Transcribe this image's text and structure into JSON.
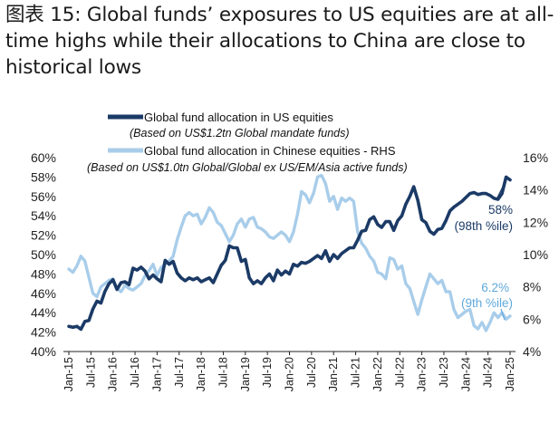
{
  "title": "图表 15: Global funds’  exposures to US equities are at all-time highs while their allocations to China are close to historical lows",
  "chart_data": {
    "type": "line",
    "x_ticks": [
      "Jan-15",
      "Jul-15",
      "Jan-16",
      "Jul-16",
      "Jan-17",
      "Jul-17",
      "Jan-18",
      "Jul-18",
      "Jan-19",
      "Jul-19",
      "Jan-20",
      "Jul-20",
      "Jan-21",
      "Jul-21",
      "Jan-22",
      "Jul-22",
      "Jan-23",
      "Jul-23",
      "Jan-24",
      "Jul-24",
      "Jan-25"
    ],
    "y_left": {
      "ticks": [
        "60%",
        "58%",
        "56%",
        "54%",
        "52%",
        "50%",
        "48%",
        "46%",
        "44%",
        "42%",
        "40%"
      ],
      "range": [
        40,
        60
      ]
    },
    "y_right": {
      "ticks": [
        "16%",
        "14%",
        "12%",
        "10%",
        "8%",
        "6%",
        "4%"
      ],
      "range": [
        4,
        16
      ]
    },
    "legend": [
      {
        "label": "Global fund allocation in US equities",
        "sub": "(Based on US$1.2tn Global mandate funds)",
        "color": "#1b3a66"
      },
      {
        "label": "Global fund allocation in Chinese equities - RHS",
        "sub": "(Based on US$1.0tn Global/Global ex US/EM/Asia active funds)",
        "color": "#a8cdea"
      }
    ],
    "annotations": [
      {
        "line1": "58%",
        "line2": "(98th %ile)",
        "color": "#1b3a66"
      },
      {
        "line1": "6.2%",
        "line2": "(9th %ile)",
        "color": "#5fa8dc"
      }
    ],
    "series": [
      {
        "name": "Global fund allocation in US equities",
        "axis": "left",
        "color": "#1b3a66",
        "points": [
          [
            0,
            42.6
          ],
          [
            1,
            42.5
          ],
          [
            2,
            42.6
          ],
          [
            3,
            42.3
          ],
          [
            4,
            43.1
          ],
          [
            5,
            43.2
          ],
          [
            6,
            44.4
          ],
          [
            7,
            45.2
          ],
          [
            8,
            45.0
          ],
          [
            9,
            46.2
          ],
          [
            10,
            47.0
          ],
          [
            11,
            47.4
          ],
          [
            12,
            46.4
          ],
          [
            13,
            47.1
          ],
          [
            14,
            47.2
          ],
          [
            15,
            46.9
          ],
          [
            16,
            48.6
          ],
          [
            17,
            48.4
          ],
          [
            18,
            48.7
          ],
          [
            19,
            48.3
          ],
          [
            20,
            47.5
          ],
          [
            21,
            47.9
          ],
          [
            22,
            47.5
          ],
          [
            23,
            47.2
          ],
          [
            24,
            49.4
          ],
          [
            25,
            49.0
          ],
          [
            26,
            49.3
          ],
          [
            27,
            48.1
          ],
          [
            28,
            47.6
          ],
          [
            29,
            47.3
          ],
          [
            30,
            47.6
          ],
          [
            31,
            47.4
          ],
          [
            32,
            47.6
          ],
          [
            33,
            47.2
          ],
          [
            34,
            47.4
          ],
          [
            35,
            47.6
          ],
          [
            36,
            47.1
          ],
          [
            37,
            48.0
          ],
          [
            38,
            48.9
          ],
          [
            39,
            49.4
          ],
          [
            40,
            50.9
          ],
          [
            41,
            50.7
          ],
          [
            42,
            50.7
          ],
          [
            43,
            49.3
          ],
          [
            44,
            49.5
          ],
          [
            45,
            47.6
          ],
          [
            46,
            47.0
          ],
          [
            47,
            47.3
          ],
          [
            48,
            47.0
          ],
          [
            49,
            47.6
          ],
          [
            50,
            48.0
          ],
          [
            51,
            47.3
          ],
          [
            52,
            48.4
          ],
          [
            53,
            47.9
          ],
          [
            54,
            48.3
          ],
          [
            55,
            48.0
          ],
          [
            56,
            49.0
          ],
          [
            57,
            48.8
          ],
          [
            58,
            49.2
          ],
          [
            59,
            49.1
          ],
          [
            60,
            49.3
          ],
          [
            61,
            49.6
          ],
          [
            62,
            49.9
          ],
          [
            63,
            49.6
          ],
          [
            64,
            50.4
          ],
          [
            65,
            49.3
          ],
          [
            66,
            50.0
          ],
          [
            67,
            49.6
          ],
          [
            68,
            50.1
          ],
          [
            69,
            50.4
          ],
          [
            70,
            50.7
          ],
          [
            71,
            50.7
          ],
          [
            72,
            51.5
          ],
          [
            73,
            52.4
          ],
          [
            74,
            52.5
          ],
          [
            75,
            53.6
          ],
          [
            76,
            53.9
          ],
          [
            77,
            53.1
          ],
          [
            78,
            52.8
          ],
          [
            79,
            53.4
          ],
          [
            80,
            53.4
          ],
          [
            81,
            52.5
          ],
          [
            82,
            53.5
          ],
          [
            83,
            54.0
          ],
          [
            84,
            55.2
          ],
          [
            85,
            56.0
          ],
          [
            86,
            57.0
          ],
          [
            87,
            55.6
          ],
          [
            88,
            53.6
          ],
          [
            89,
            53.3
          ],
          [
            90,
            52.4
          ],
          [
            91,
            52.1
          ],
          [
            92,
            52.6
          ],
          [
            93,
            52.7
          ],
          [
            94,
            53.5
          ],
          [
            95,
            54.5
          ],
          [
            96,
            54.9
          ],
          [
            97,
            55.2
          ],
          [
            98,
            55.5
          ],
          [
            99,
            55.9
          ],
          [
            100,
            56.3
          ],
          [
            101,
            56.4
          ],
          [
            102,
            56.2
          ],
          [
            103,
            56.3
          ],
          [
            104,
            56.3
          ],
          [
            105,
            56.1
          ],
          [
            106,
            55.8
          ],
          [
            107,
            55.7
          ],
          [
            108,
            56.3
          ],
          [
            109,
            58.0
          ],
          [
            110,
            57.7
          ]
        ]
      },
      {
        "name": "Global fund allocation in Chinese equities - RHS",
        "axis": "right",
        "color": "#a8cdea",
        "points": [
          [
            0,
            9.1
          ],
          [
            1,
            8.9
          ],
          [
            2,
            9.3
          ],
          [
            3,
            9.9
          ],
          [
            4,
            9.6
          ],
          [
            5,
            8.6
          ],
          [
            6,
            7.6
          ],
          [
            7,
            7.4
          ],
          [
            8,
            8.0
          ],
          [
            9,
            8.2
          ],
          [
            10,
            8.4
          ],
          [
            11,
            8.5
          ],
          [
            12,
            7.9
          ],
          [
            13,
            7.7
          ],
          [
            14,
            8.1
          ],
          [
            15,
            7.9
          ],
          [
            16,
            7.8
          ],
          [
            17,
            8.0
          ],
          [
            18,
            8.2
          ],
          [
            19,
            8.7
          ],
          [
            20,
            9.0
          ],
          [
            21,
            9.4
          ],
          [
            22,
            8.7
          ],
          [
            23,
            9.2
          ],
          [
            24,
            9.4
          ],
          [
            25,
            9.6
          ],
          [
            26,
            9.9
          ],
          [
            27,
            10.9
          ],
          [
            28,
            11.7
          ],
          [
            29,
            12.4
          ],
          [
            30,
            12.6
          ],
          [
            31,
            12.4
          ],
          [
            32,
            12.5
          ],
          [
            33,
            11.9
          ],
          [
            34,
            12.3
          ],
          [
            35,
            12.9
          ],
          [
            36,
            12.6
          ],
          [
            37,
            12.0
          ],
          [
            38,
            11.8
          ],
          [
            39,
            11.3
          ],
          [
            40,
            10.8
          ],
          [
            41,
            11.2
          ],
          [
            42,
            11.9
          ],
          [
            43,
            12.2
          ],
          [
            44,
            11.7
          ],
          [
            45,
            12.2
          ],
          [
            46,
            12.3
          ],
          [
            47,
            11.7
          ],
          [
            48,
            11.6
          ],
          [
            49,
            11.4
          ],
          [
            50,
            11.1
          ],
          [
            51,
            11.0
          ],
          [
            52,
            11.2
          ],
          [
            53,
            11.4
          ],
          [
            54,
            11.2
          ],
          [
            55,
            10.8
          ],
          [
            56,
            11.4
          ],
          [
            57,
            12.5
          ],
          [
            58,
            13.9
          ],
          [
            59,
            13.7
          ],
          [
            60,
            13.2
          ],
          [
            61,
            13.8
          ],
          [
            62,
            14.8
          ],
          [
            63,
            14.9
          ],
          [
            64,
            14.4
          ],
          [
            65,
            13.3
          ],
          [
            66,
            13.6
          ],
          [
            67,
            12.8
          ],
          [
            68,
            13.5
          ],
          [
            69,
            13.3
          ],
          [
            70,
            13.5
          ],
          [
            71,
            13.3
          ],
          [
            72,
            11.4
          ],
          [
            73,
            10.7
          ],
          [
            74,
            10.4
          ],
          [
            75,
            9.9
          ],
          [
            76,
            9.6
          ],
          [
            77,
            8.9
          ],
          [
            78,
            8.8
          ],
          [
            79,
            8.5
          ],
          [
            80,
            9.8
          ],
          [
            81,
            9.7
          ],
          [
            82,
            9.1
          ],
          [
            83,
            9.3
          ],
          [
            84,
            8.2
          ],
          [
            85,
            7.9
          ],
          [
            86,
            7.1
          ],
          [
            87,
            6.3
          ],
          [
            88,
            7.2
          ],
          [
            89,
            8.0
          ],
          [
            90,
            8.8
          ],
          [
            91,
            8.5
          ],
          [
            92,
            8.2
          ],
          [
            93,
            8.4
          ],
          [
            94,
            7.7
          ],
          [
            95,
            7.7
          ],
          [
            96,
            6.6
          ],
          [
            97,
            6.1
          ],
          [
            98,
            6.3
          ],
          [
            99,
            6.5
          ],
          [
            100,
            6.6
          ],
          [
            101,
            5.6
          ],
          [
            102,
            5.4
          ],
          [
            103,
            5.8
          ],
          [
            104,
            5.3
          ],
          [
            105,
            5.8
          ],
          [
            106,
            6.4
          ],
          [
            107,
            6.1
          ],
          [
            108,
            6.4
          ],
          [
            109,
            6.0
          ],
          [
            110,
            6.2
          ]
        ]
      }
    ]
  }
}
